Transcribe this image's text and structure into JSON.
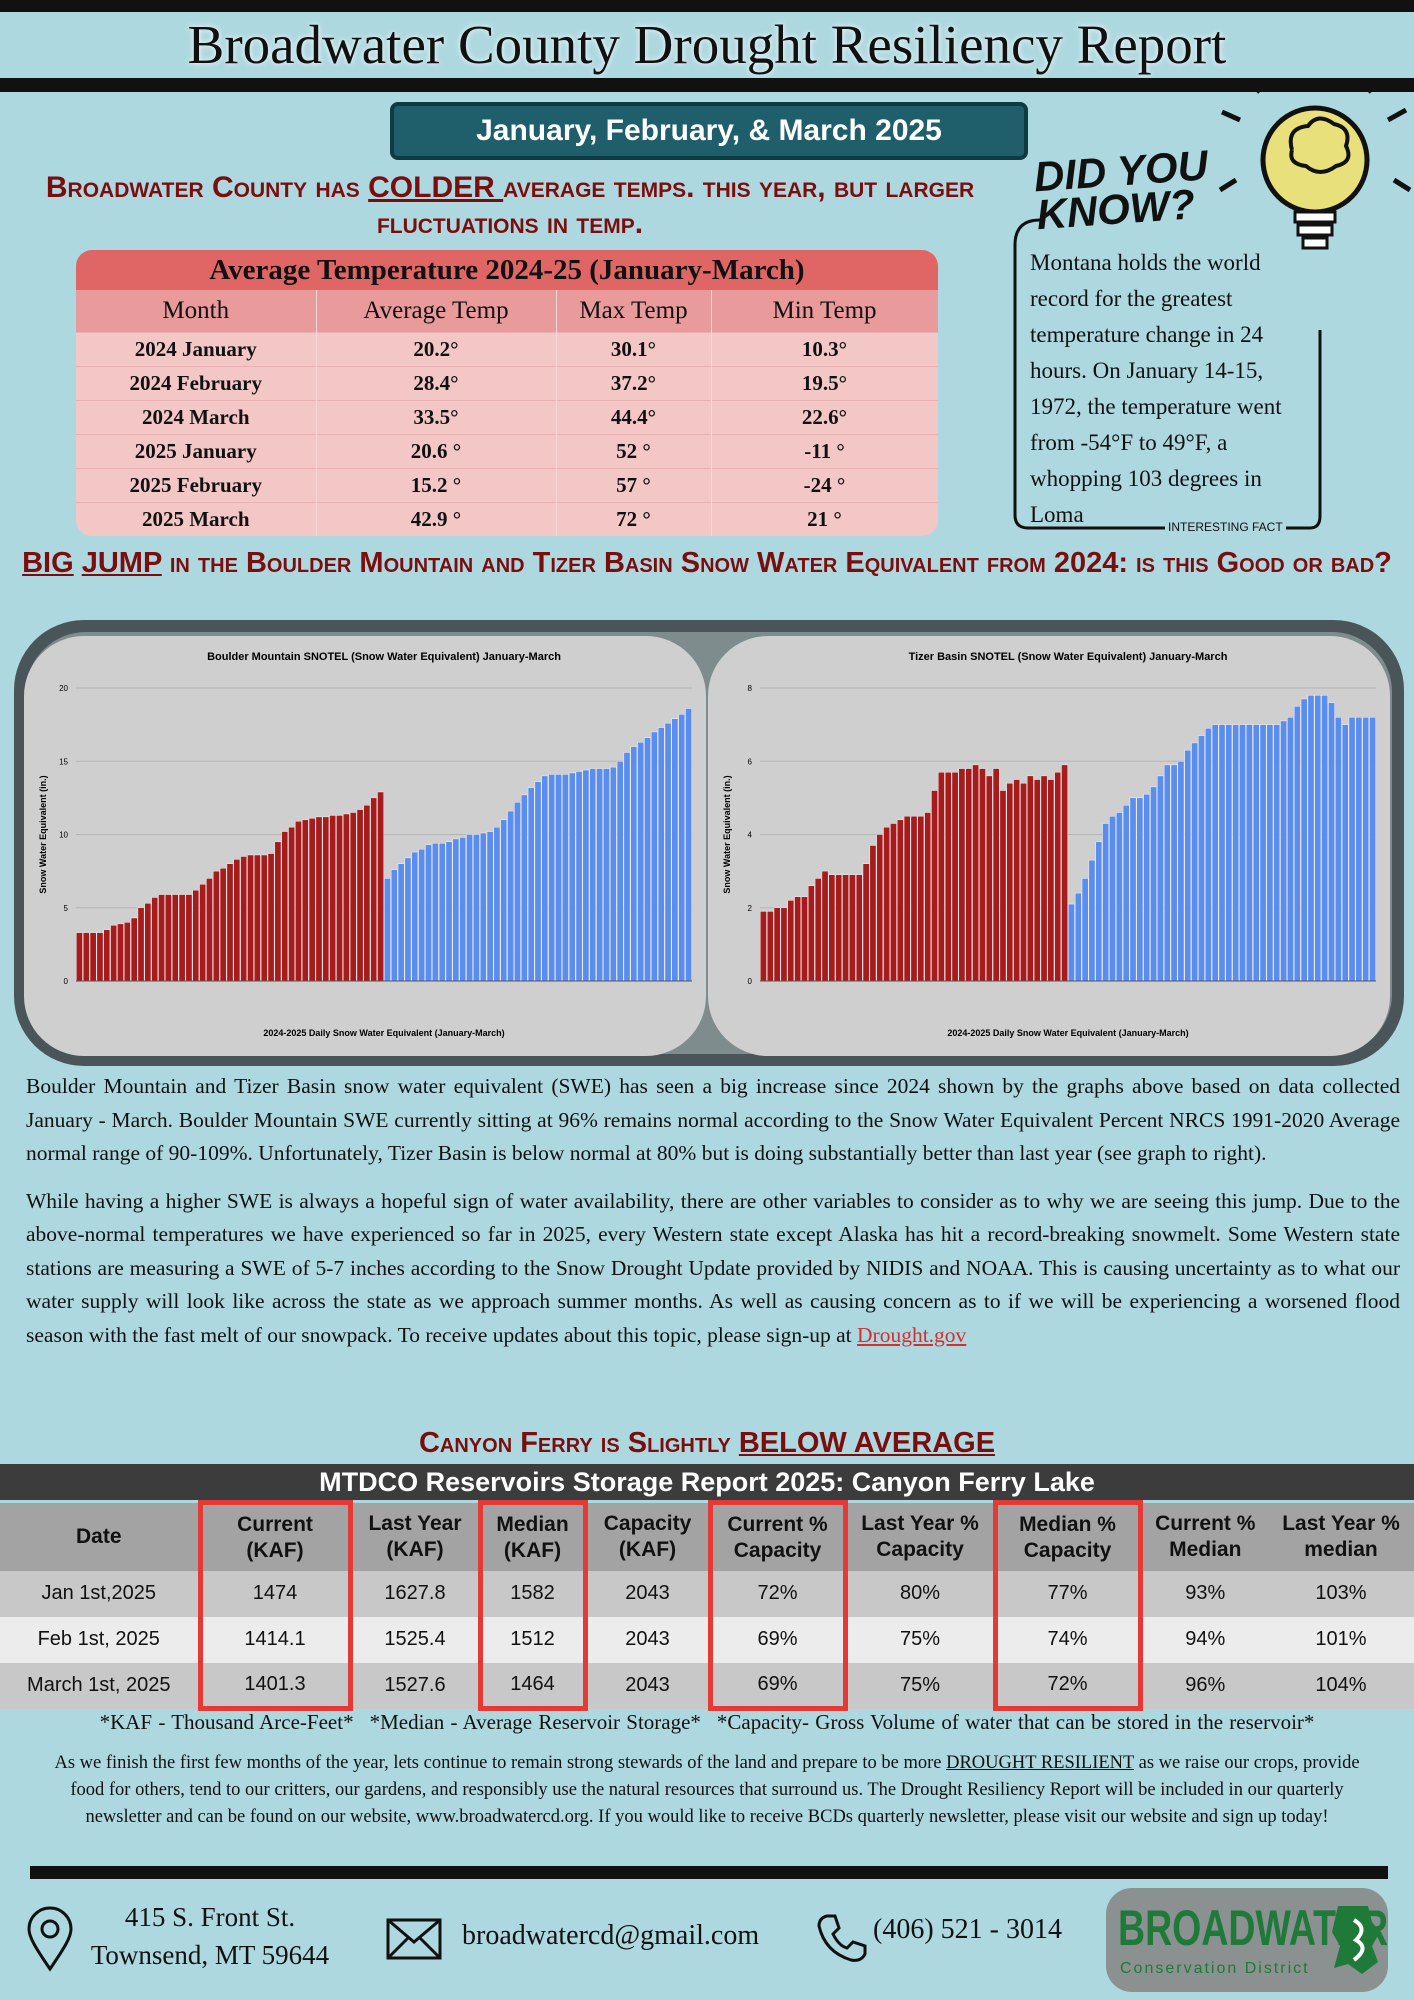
{
  "header": {
    "title": "Broadwater County Drought Resiliency Report",
    "period": "January, February, & March 2025"
  },
  "temp_headline": {
    "before": "Broadwater County has ",
    "emphasis": "COLDER ",
    "after": "average temps. this year, but larger fluctuations in temp."
  },
  "temp_table": {
    "title": "Average Temperature 2024-25 (January-March)",
    "columns": [
      "Month",
      "Average Temp",
      "Max Temp",
      "Min Temp"
    ],
    "rows": [
      [
        "2024 January",
        "20.2°",
        "30.1°",
        "10.3°"
      ],
      [
        "2024 February",
        "28.4°",
        "37.2°",
        "19.5°"
      ],
      [
        "2024 March",
        "33.5°",
        "44.4°",
        "22.6°"
      ],
      [
        "2025 January",
        "20.6 °",
        "52 °",
        "-11 °"
      ],
      [
        "2025 February",
        "15.2 °",
        "57 °",
        "-24 °"
      ],
      [
        "2025 March",
        "42.9 °",
        "72 °",
        "21 °"
      ]
    ]
  },
  "did_you_know": {
    "heading": "DID YOU KNOW?",
    "text": "Montana holds the world record for the greatest temperature change in 24 hours. On January 14-15, 1972, the temperature went from -54°F to 49°F, a whopping 103 degrees in Loma",
    "tag": "INTERESTING FACT"
  },
  "swe_headline": {
    "word1": "BIG",
    "word2": "JUMP",
    "after": " in the Boulder Mountain and Tizer Basin Snow Water Equivalent from 2024: is this Good or bad?"
  },
  "chart_data": [
    {
      "type": "bar",
      "title": "Boulder Mountain SNOTEL (Snow Water Equivalent) January-March",
      "ylabel": "Snow Water Equivalent (in.)",
      "xlabel": "2024-2025 Daily Snow Water Equivalent (January-March)",
      "ylim": [
        0,
        20
      ],
      "yticks": [
        0,
        5,
        10,
        15,
        20
      ],
      "grid": true,
      "series": [
        {
          "color": "#a61c1c",
          "values": [
            3.3,
            3.3,
            3.3,
            3.3,
            3.5,
            3.8,
            3.9,
            4.0,
            4.3,
            5.0,
            5.3,
            5.7,
            5.9,
            5.9,
            5.9,
            5.9,
            5.9,
            6.2,
            6.6,
            7.0,
            7.5,
            7.7,
            8.0,
            8.3,
            8.5,
            8.6,
            8.6,
            8.6,
            8.7,
            9.5,
            10.2,
            10.5,
            10.9,
            11.0,
            11.1,
            11.2,
            11.2,
            11.3,
            11.3,
            11.4,
            11.5,
            11.7,
            12.0,
            12.5,
            12.9
          ]
        },
        {
          "color": "#5b8def",
          "values": [
            7.0,
            7.6,
            8.0,
            8.4,
            8.8,
            9.0,
            9.3,
            9.4,
            9.4,
            9.5,
            9.7,
            9.8,
            10.0,
            10.0,
            10.1,
            10.2,
            10.5,
            11.0,
            11.6,
            12.2,
            12.7,
            13.2,
            13.6,
            14.0,
            14.1,
            14.1,
            14.1,
            14.2,
            14.3,
            14.4,
            14.5,
            14.5,
            14.5,
            14.6,
            15.0,
            15.6,
            16.0,
            16.3,
            16.6,
            17.0,
            17.3,
            17.6,
            17.9,
            18.2,
            18.6
          ]
        }
      ]
    },
    {
      "type": "bar",
      "title": "Tizer Basin SNOTEL (Snow Water Equivalent) January-March",
      "ylabel": "Snow Water Equivalent (in.)",
      "xlabel": "2024-2025 Daily Snow Water Equivalent (January-March)",
      "ylim": [
        0,
        8
      ],
      "yticks": [
        0,
        2,
        4,
        6,
        8
      ],
      "grid": true,
      "series": [
        {
          "color": "#a61c1c",
          "values": [
            1.9,
            1.9,
            2.0,
            2.0,
            2.2,
            2.3,
            2.3,
            2.6,
            2.8,
            3.0,
            2.9,
            2.9,
            2.9,
            2.9,
            2.9,
            3.2,
            3.7,
            4.0,
            4.2,
            4.3,
            4.4,
            4.5,
            4.5,
            4.5,
            4.6,
            5.2,
            5.7,
            5.7,
            5.7,
            5.8,
            5.8,
            5.9,
            5.8,
            5.6,
            5.8,
            5.2,
            5.4,
            5.5,
            5.4,
            5.6,
            5.5,
            5.6,
            5.5,
            5.7,
            5.9
          ]
        },
        {
          "color": "#5b8def",
          "values": [
            2.1,
            2.4,
            2.8,
            3.3,
            3.8,
            4.3,
            4.5,
            4.6,
            4.8,
            5.0,
            5.0,
            5.1,
            5.3,
            5.6,
            5.9,
            5.9,
            6.0,
            6.3,
            6.5,
            6.7,
            6.9,
            7.0,
            7.0,
            7.0,
            7.0,
            7.0,
            7.0,
            7.0,
            7.0,
            7.0,
            7.0,
            7.1,
            7.2,
            7.5,
            7.7,
            7.8,
            7.8,
            7.8,
            7.6,
            7.2,
            7.0,
            7.2,
            7.2,
            7.2,
            7.2
          ]
        }
      ]
    }
  ],
  "body": {
    "p1": "Boulder Mountain and Tizer Basin snow water equivalent (SWE) has seen a big increase since 2024 shown by the graphs above based on data collected January - March. Boulder Mountain SWE currently sitting at 96% remains normal according to the Snow Water Equivalent Percent NRCS 1991-2020 Average normal range of 90-109%. Unfortunately, Tizer Basin is below normal at 80% but is doing substantially better than last year (see graph to right).",
    "p2": "While having a higher SWE is always a hopeful sign of water availability, there are other variables to consider as to why we are seeing this jump. Due to the above-normal temperatures we have experienced so far in 2025, every Western state except Alaska has hit a record-breaking snowmelt. Some Western state stations are measuring a SWE of 5-7 inches according to the Snow Drought Update provided by NIDIS and NOAA. This is causing uncertainty as to what our water supply will look like across the state as we approach summer months. As well as causing concern as to if we will be experiencing a worsened flood season with the fast melt of our snowpack. To receive updates about this topic, please sign-up at ",
    "link": "Drought.gov"
  },
  "reservoir_headline": {
    "before": "Canyon Ferry is Slightly ",
    "emphasis": "BELOW AVERAGE"
  },
  "reservoir_table": {
    "title": "MTDCO Reservoirs Storage Report 2025: Canyon Ferry Lake",
    "columns": [
      "Date",
      "Current (KAF)",
      "Last Year (KAF)",
      "Median (KAF)",
      "Capacity (KAF)",
      "Current % Capacity",
      "Last Year % Capacity",
      "Median % Capacity",
      "Current % Median",
      "Last Year % median"
    ],
    "rows": [
      [
        "Jan 1st,2025",
        "1474",
        "1627.8",
        "1582",
        "2043",
        "72%",
        "80%",
        "77%",
        "93%",
        "103%"
      ],
      [
        "Feb 1st, 2025",
        "1414.1",
        "1525.4",
        "1512",
        "2043",
        "69%",
        "75%",
        "74%",
        "94%",
        "101%"
      ],
      [
        "March 1st, 2025",
        "1401.3",
        "1527.6",
        "1464",
        "2043",
        "69%",
        "75%",
        "72%",
        "96%",
        "104%"
      ]
    ]
  },
  "footnotes": [
    "*KAF - Thousand Arce-Feet*",
    "*Median - Average Reservoir Storage*",
    "*Capacity- Gross Volume of water that can be stored in the reservoir*"
  ],
  "closing": {
    "before": "As we finish the first few months of the year, lets continue to remain strong stewards of the land and prepare to be more ",
    "emphasis": "DROUGHT RESILIENT",
    "after": " as we raise our crops, provide food for others, tend to our critters, our gardens, and responsibly use the natural resources that surround us. The Drought Resiliency Report will be included in our quarterly newsletter and can be found on our website, www.broadwatercd.org. If you would like to receive BCDs quarterly newsletter, please visit our website and sign up today!"
  },
  "footer": {
    "address": [
      "415 S. Front St.",
      "Townsend, MT 59644"
    ],
    "email": "broadwatercd@gmail.com",
    "phone": "(406) 521 - 3014",
    "logo": "BROADWATER",
    "logo_sub": "Conservation District"
  }
}
